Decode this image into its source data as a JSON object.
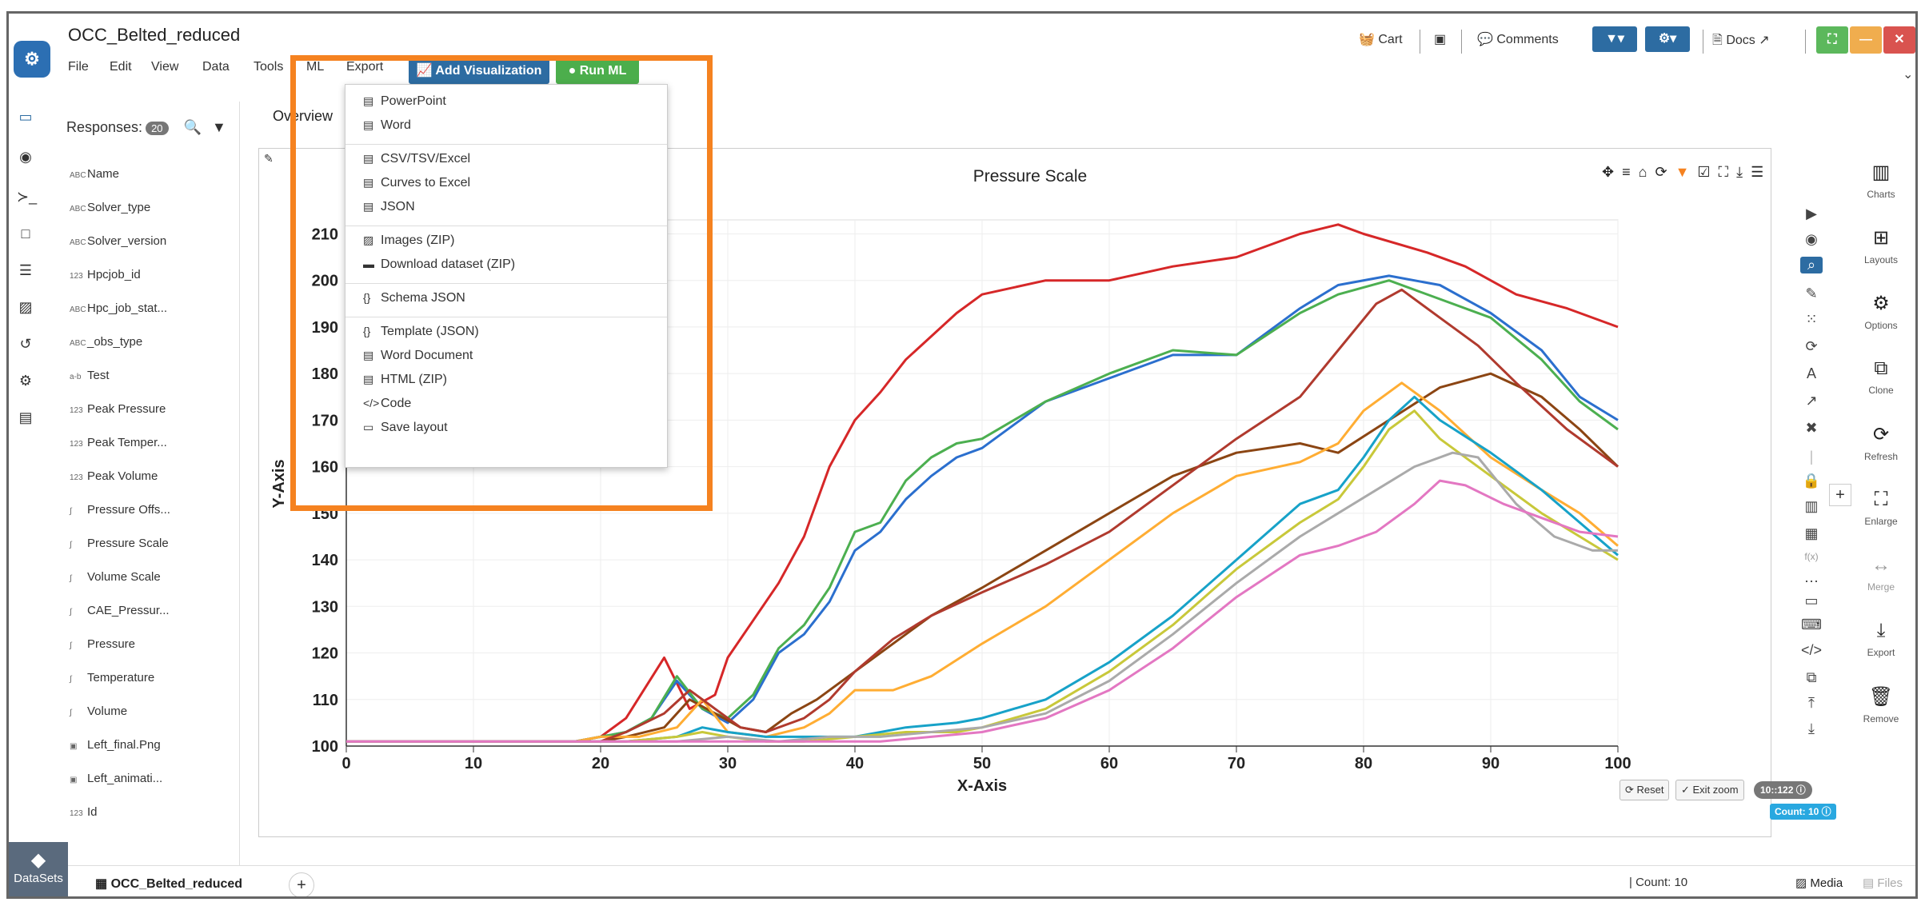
{
  "app": {
    "title": "OCC_Belted_reduced",
    "menu": [
      "File",
      "Edit",
      "View",
      "Data",
      "Tools",
      "ML",
      "Export"
    ],
    "add_viz_label": "Add Visualization",
    "run_ml_label": "Run ML"
  },
  "toolbar": {
    "cart_label": "Cart",
    "comments_label": "Comments",
    "docs_label": "Docs"
  },
  "colors": {
    "accent_blue": "#2d6ca2",
    "run_green": "#4cae4c",
    "highlight_orange": "#f58220",
    "win_green": "#5cb85c",
    "win_orange": "#f0ad4e",
    "win_red": "#d9534f"
  },
  "fields": {
    "responses_label": "Responses:",
    "responses_count": "20",
    "items": [
      {
        "type": "ABC",
        "name": "Name"
      },
      {
        "type": "ABC",
        "name": "Solver_type"
      },
      {
        "type": "ABC",
        "name": "Solver_version"
      },
      {
        "type": "123",
        "name": "Hpcjob_id"
      },
      {
        "type": "ABC",
        "name": "Hpc_job_stat..."
      },
      {
        "type": "ABC",
        "name": "_obs_type"
      },
      {
        "type": "a-b",
        "name": "Test"
      },
      {
        "type": "123",
        "name": "Peak Pressure"
      },
      {
        "type": "123",
        "name": "Peak Temper..."
      },
      {
        "type": "123",
        "name": "Peak Volume"
      },
      {
        "type": "∫",
        "name": "Pressure Offs..."
      },
      {
        "type": "∫",
        "name": "Pressure Scale"
      },
      {
        "type": "∫",
        "name": "Volume Scale"
      },
      {
        "type": "∫",
        "name": "CAE_Pressur..."
      },
      {
        "type": "∫",
        "name": "Pressure"
      },
      {
        "type": "∫",
        "name": "Temperature"
      },
      {
        "type": "∫",
        "name": "Volume"
      },
      {
        "type": "▣",
        "name": "Left_final.Png"
      },
      {
        "type": "▣",
        "name": "Left_animati..."
      },
      {
        "type": "123",
        "name": "Id"
      }
    ]
  },
  "tabs": {
    "overview_label": "Overview"
  },
  "export_menu": {
    "items": [
      "PowerPoint",
      "Word",
      "CSV/TSV/Excel",
      "Curves to Excel",
      "JSON",
      "Images (ZIP)",
      "Download dataset (ZIP)",
      "Schema JSON",
      "Template (JSON)",
      "Word Document",
      "HTML (ZIP)",
      "Code",
      "Save layout"
    ]
  },
  "right_rail": [
    "Charts",
    "Layouts",
    "Options",
    "Clone",
    "Refresh",
    "Enlarge",
    "Merge",
    "Export",
    "Remove"
  ],
  "plot_footer": {
    "reset_label": "Reset",
    "exit_zoom_label": "Exit zoom",
    "range_label": "10::122",
    "count_label": "Count: 10"
  },
  "status_bar": {
    "datasets_label": "DataSets",
    "dataset_tab": "OCC_Belted_reduced",
    "count_text": "Count: 10",
    "media_label": "Media",
    "files_label": "Files"
  },
  "chart_data": {
    "type": "line",
    "title": "Pressure Scale",
    "xlabel": "X-Axis",
    "ylabel": "Y-Axis",
    "xlim": [
      0,
      100
    ],
    "ylim": [
      100,
      213
    ],
    "xticks": [
      0,
      10,
      20,
      30,
      40,
      50,
      60,
      70,
      80,
      90,
      100
    ],
    "yticks": [
      100,
      110,
      120,
      130,
      140,
      150,
      160,
      170,
      180,
      190,
      200,
      210
    ],
    "grid": true,
    "series": [
      {
        "color": "#d62728",
        "points": [
          [
            0,
            101
          ],
          [
            18,
            101
          ],
          [
            20,
            102
          ],
          [
            22,
            106
          ],
          [
            25,
            119
          ],
          [
            27,
            108
          ],
          [
            29,
            111
          ],
          [
            30,
            119
          ],
          [
            32,
            127
          ],
          [
            34,
            135
          ],
          [
            36,
            145
          ],
          [
            38,
            160
          ],
          [
            40,
            170
          ],
          [
            42,
            176
          ],
          [
            44,
            183
          ],
          [
            46,
            188
          ],
          [
            48,
            193
          ],
          [
            50,
            197
          ],
          [
            55,
            200
          ],
          [
            60,
            200
          ],
          [
            65,
            203
          ],
          [
            70,
            205
          ],
          [
            75,
            210
          ],
          [
            78,
            212
          ],
          [
            80,
            210
          ],
          [
            85,
            206
          ],
          [
            88,
            203
          ],
          [
            92,
            197
          ],
          [
            96,
            194
          ],
          [
            100,
            190
          ]
        ]
      },
      {
        "color": "#2b6fce",
        "points": [
          [
            0,
            101
          ],
          [
            18,
            101
          ],
          [
            20,
            102
          ],
          [
            22,
            103
          ],
          [
            24,
            106
          ],
          [
            26,
            114
          ],
          [
            28,
            108
          ],
          [
            30,
            105
          ],
          [
            32,
            110
          ],
          [
            34,
            120
          ],
          [
            36,
            124
          ],
          [
            38,
            131
          ],
          [
            40,
            142
          ],
          [
            42,
            146
          ],
          [
            44,
            153
          ],
          [
            46,
            158
          ],
          [
            48,
            162
          ],
          [
            50,
            164
          ],
          [
            55,
            174
          ],
          [
            60,
            179
          ],
          [
            65,
            184
          ],
          [
            70,
            184
          ],
          [
            75,
            194
          ],
          [
            78,
            199
          ],
          [
            82,
            201
          ],
          [
            86,
            199
          ],
          [
            90,
            193
          ],
          [
            94,
            185
          ],
          [
            97,
            175
          ],
          [
            100,
            170
          ]
        ]
      },
      {
        "color": "#4caf50",
        "points": [
          [
            0,
            101
          ],
          [
            18,
            101
          ],
          [
            20,
            102
          ],
          [
            22,
            103
          ],
          [
            24,
            106
          ],
          [
            26,
            115
          ],
          [
            28,
            108
          ],
          [
            30,
            106
          ],
          [
            32,
            111
          ],
          [
            34,
            121
          ],
          [
            36,
            126
          ],
          [
            38,
            134
          ],
          [
            40,
            146
          ],
          [
            42,
            148
          ],
          [
            44,
            157
          ],
          [
            46,
            162
          ],
          [
            48,
            165
          ],
          [
            50,
            166
          ],
          [
            55,
            174
          ],
          [
            60,
            180
          ],
          [
            65,
            185
          ],
          [
            70,
            184
          ],
          [
            75,
            193
          ],
          [
            78,
            197
          ],
          [
            82,
            200
          ],
          [
            86,
            196
          ],
          [
            90,
            192
          ],
          [
            94,
            183
          ],
          [
            97,
            174
          ],
          [
            100,
            168
          ]
        ]
      },
      {
        "color": "#8b4513",
        "points": [
          [
            0,
            101
          ],
          [
            18,
            101
          ],
          [
            20,
            101
          ],
          [
            22,
            102
          ],
          [
            25,
            104
          ],
          [
            27,
            110
          ],
          [
            29,
            107
          ],
          [
            31,
            104
          ],
          [
            33,
            103
          ],
          [
            35,
            107
          ],
          [
            37,
            110
          ],
          [
            40,
            116
          ],
          [
            43,
            122
          ],
          [
            46,
            128
          ],
          [
            50,
            134
          ],
          [
            55,
            142
          ],
          [
            60,
            150
          ],
          [
            65,
            158
          ],
          [
            70,
            163
          ],
          [
            75,
            165
          ],
          [
            78,
            163
          ],
          [
            82,
            170
          ],
          [
            86,
            177
          ],
          [
            90,
            180
          ],
          [
            94,
            175
          ],
          [
            97,
            168
          ],
          [
            100,
            160
          ]
        ]
      },
      {
        "color": "#ffad33",
        "points": [
          [
            0,
            101
          ],
          [
            18,
            101
          ],
          [
            20,
            102
          ],
          [
            23,
            102
          ],
          [
            26,
            104
          ],
          [
            28,
            110
          ],
          [
            30,
            103
          ],
          [
            33,
            102
          ],
          [
            36,
            104
          ],
          [
            38,
            107
          ],
          [
            40,
            112
          ],
          [
            43,
            112
          ],
          [
            46,
            115
          ],
          [
            50,
            122
          ],
          [
            55,
            130
          ],
          [
            60,
            140
          ],
          [
            65,
            150
          ],
          [
            70,
            158
          ],
          [
            75,
            161
          ],
          [
            78,
            165
          ],
          [
            80,
            172
          ],
          [
            83,
            178
          ],
          [
            86,
            172
          ],
          [
            90,
            162
          ],
          [
            94,
            155
          ],
          [
            97,
            150
          ],
          [
            100,
            143
          ]
        ]
      },
      {
        "color": "#b03a2e",
        "points": [
          [
            0,
            101
          ],
          [
            18,
            101
          ],
          [
            20,
            101
          ],
          [
            22,
            103
          ],
          [
            25,
            107
          ],
          [
            27,
            112
          ],
          [
            29,
            108
          ],
          [
            31,
            104
          ],
          [
            33,
            103
          ],
          [
            36,
            106
          ],
          [
            38,
            110
          ],
          [
            40,
            116
          ],
          [
            43,
            123
          ],
          [
            46,
            128
          ],
          [
            50,
            133
          ],
          [
            55,
            139
          ],
          [
            60,
            146
          ],
          [
            65,
            156
          ],
          [
            70,
            166
          ],
          [
            75,
            175
          ],
          [
            78,
            185
          ],
          [
            81,
            195
          ],
          [
            83,
            198
          ],
          [
            86,
            192
          ],
          [
            89,
            186
          ],
          [
            92,
            178
          ],
          [
            96,
            168
          ],
          [
            100,
            160
          ]
        ]
      },
      {
        "color": "#17a2c8",
        "points": [
          [
            0,
            101
          ],
          [
            18,
            101
          ],
          [
            22,
            101
          ],
          [
            26,
            102
          ],
          [
            28,
            104
          ],
          [
            30,
            103
          ],
          [
            33,
            102
          ],
          [
            36,
            102
          ],
          [
            40,
            102
          ],
          [
            44,
            104
          ],
          [
            48,
            105
          ],
          [
            50,
            106
          ],
          [
            55,
            110
          ],
          [
            60,
            118
          ],
          [
            65,
            128
          ],
          [
            70,
            140
          ],
          [
            75,
            152
          ],
          [
            78,
            155
          ],
          [
            80,
            162
          ],
          [
            82,
            170
          ],
          [
            84,
            175
          ],
          [
            86,
            170
          ],
          [
            90,
            163
          ],
          [
            94,
            155
          ],
          [
            97,
            148
          ],
          [
            100,
            141
          ]
        ]
      },
      {
        "color": "#c8c83a",
        "points": [
          [
            0,
            101
          ],
          [
            18,
            101
          ],
          [
            22,
            101
          ],
          [
            26,
            102
          ],
          [
            28,
            103
          ],
          [
            30,
            102
          ],
          [
            33,
            101
          ],
          [
            36,
            101
          ],
          [
            40,
            102
          ],
          [
            44,
            103
          ],
          [
            48,
            103
          ],
          [
            50,
            104
          ],
          [
            55,
            108
          ],
          [
            60,
            116
          ],
          [
            65,
            126
          ],
          [
            70,
            138
          ],
          [
            75,
            148
          ],
          [
            78,
            153
          ],
          [
            80,
            160
          ],
          [
            82,
            168
          ],
          [
            84,
            172
          ],
          [
            86,
            166
          ],
          [
            90,
            158
          ],
          [
            94,
            150
          ],
          [
            97,
            145
          ],
          [
            100,
            140
          ]
        ]
      },
      {
        "color": "#aaaaaa",
        "points": [
          [
            0,
            101
          ],
          [
            18,
            101
          ],
          [
            22,
            101
          ],
          [
            26,
            101
          ],
          [
            30,
            102
          ],
          [
            34,
            101
          ],
          [
            38,
            102
          ],
          [
            42,
            102
          ],
          [
            46,
            103
          ],
          [
            50,
            104
          ],
          [
            55,
            107
          ],
          [
            60,
            114
          ],
          [
            65,
            124
          ],
          [
            70,
            135
          ],
          [
            75,
            145
          ],
          [
            78,
            150
          ],
          [
            81,
            155
          ],
          [
            84,
            160
          ],
          [
            87,
            163
          ],
          [
            89,
            162
          ],
          [
            92,
            152
          ],
          [
            95,
            145
          ],
          [
            98,
            142
          ],
          [
            100,
            142
          ]
        ]
      },
      {
        "color": "#e377c2",
        "points": [
          [
            0,
            101
          ],
          [
            18,
            101
          ],
          [
            22,
            101
          ],
          [
            26,
            101
          ],
          [
            30,
            101
          ],
          [
            34,
            101
          ],
          [
            38,
            101
          ],
          [
            42,
            101
          ],
          [
            46,
            102
          ],
          [
            50,
            103
          ],
          [
            55,
            106
          ],
          [
            60,
            112
          ],
          [
            65,
            121
          ],
          [
            70,
            132
          ],
          [
            75,
            141
          ],
          [
            78,
            143
          ],
          [
            81,
            146
          ],
          [
            84,
            152
          ],
          [
            86,
            157
          ],
          [
            88,
            156
          ],
          [
            91,
            152
          ],
          [
            94,
            149
          ],
          [
            97,
            146
          ],
          [
            100,
            145
          ]
        ]
      }
    ]
  }
}
